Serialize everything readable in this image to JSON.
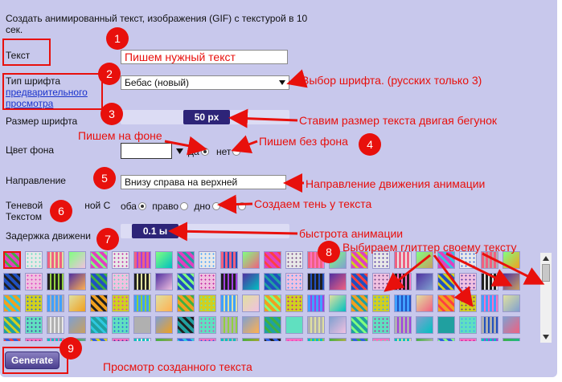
{
  "intro": {
    "text": "Создать анимированный текст, изображения (GIF) с текстурой в 10 сек."
  },
  "text_field": {
    "label": "Текст",
    "value": "Пишем нужный текст"
  },
  "font_field": {
    "label_line1": "Тип шрифта",
    "preview_link_line1": "предварительного",
    "preview_link_line2": "просмотра",
    "value": "Бебас (новый)"
  },
  "font_size": {
    "label": "Размер шрифта",
    "value": "50 рх"
  },
  "bg_color": {
    "label": "Цвет фона",
    "opt_yes": "да",
    "opt_no": "нет",
    "selected": "да"
  },
  "direction": {
    "label": "Направление",
    "value": "Внизу справа на верхней"
  },
  "shadow": {
    "label_part1": "Теневой",
    "label_part2": "ной С",
    "label_line2": "Текстом",
    "opt_both": "оба",
    "opt_right": "право",
    "opt_bottom": "дно",
    "opt_no": "не",
    "selected": "оба"
  },
  "delay": {
    "label": "Задержка движени",
    "value": "0.1 ы"
  },
  "generate": {
    "label": "Generate"
  },
  "annotations": {
    "a1": "Пишем нужный текст",
    "a2": "Выбор шрифта. (русских только 3)",
    "a3": "Ставим размер текста двигая бегунок",
    "a4a": "Пишем на фоне",
    "a4b": "Пишем без фона",
    "a5": "Направление движения анимации",
    "a6": "Создаем тень у текста",
    "a7": "быстрота анимации",
    "a8": "Выбираем глиттер своему тексту",
    "a9": "Просмотр созданного текста"
  },
  "badges": [
    "1",
    "2",
    "3",
    "4",
    "5",
    "6",
    "7",
    "8",
    "9"
  ],
  "colors": {
    "accent": "#e8100c",
    "panel": "#c8c8ec",
    "slider": "#2d2478"
  },
  "icons": {
    "dropdown": "triangle-down-icon",
    "scroll_up": "scroll-up-icon",
    "scroll_down": "scroll-down-icon"
  }
}
